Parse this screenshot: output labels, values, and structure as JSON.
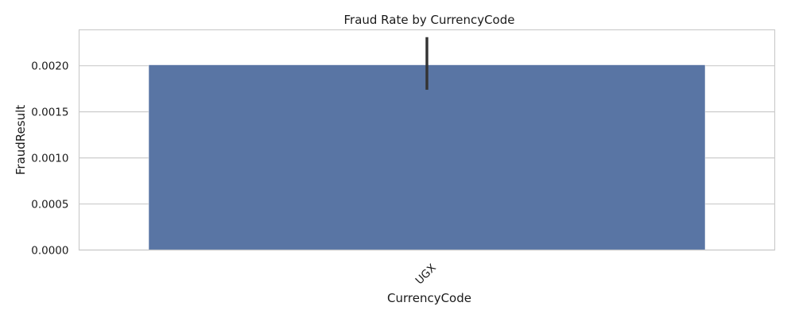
{
  "chart_data": {
    "type": "bar",
    "title": "Fraud Rate by CurrencyCode",
    "xlabel": "CurrencyCode",
    "ylabel": "FraudResult",
    "categories": [
      "UGX"
    ],
    "values": [
      0.00201
    ],
    "error_bars": [
      {
        "low": 0.00174,
        "high": 0.00231
      }
    ],
    "ylim": [
      0,
      0.00239
    ],
    "yticks": [
      0,
      0.0005,
      0.001,
      0.0015,
      0.002
    ],
    "ytick_labels": [
      "0.0000",
      "0.0005",
      "0.0010",
      "0.0015",
      "0.0020"
    ],
    "grid": true,
    "colors": {
      "bar": "#5975a4",
      "error_bar": "#333333",
      "grid": "#cccccc",
      "frame": "#cccccc"
    }
  }
}
